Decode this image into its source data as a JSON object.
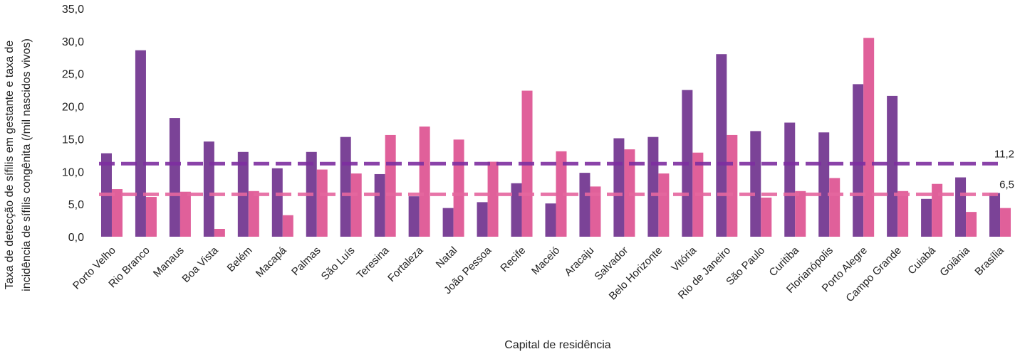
{
  "chart_data": {
    "type": "bar",
    "xlabel": "Capital de residência",
    "ylabel_lines": [
      "Taxa de detecção de sífilis em gestante e taxa de",
      "incidência de sífilis congênita (/mil nascidos vivos)"
    ],
    "ylim": [
      0,
      35
    ],
    "yticks": [
      "0,0",
      "5,0",
      "10,0",
      "15,0",
      "20,0",
      "25,0",
      "30,0",
      "35,0"
    ],
    "grid": false,
    "categories": [
      "Porto Velho",
      "Rio Branco",
      "Manaus",
      "Boa Vista",
      "Belém",
      "Macapá",
      "Palmas",
      "São Luís",
      "Teresina",
      "Fortaleza",
      "Natal",
      "João Pessoa",
      "Recife",
      "Maceió",
      "Aracaju",
      "Salvador",
      "Belo Horizonte",
      "Vitória",
      "Rio de Janeiro",
      "São Paulo",
      "Curitiba",
      "Florianópolis",
      "Porto Alegre",
      "Campo Grande",
      "Cuiabá",
      "Goiânia",
      "Brasília"
    ],
    "series": [
      {
        "values": [
          12.8,
          28.6,
          18.2,
          14.6,
          13.0,
          10.5,
          13.0,
          15.3,
          9.6,
          6.2,
          4.4,
          5.3,
          8.2,
          5.1,
          9.8,
          15.1,
          15.3,
          22.5,
          28.0,
          16.2,
          17.5,
          16.0,
          23.4,
          21.6,
          5.8,
          9.1,
          6.7
        ],
        "color": "#7B4397"
      },
      {
        "values": [
          7.3,
          6.1,
          6.9,
          1.2,
          7.0,
          3.3,
          10.3,
          9.7,
          15.6,
          16.9,
          14.9,
          11.5,
          22.4,
          13.1,
          7.7,
          13.4,
          9.7,
          12.9,
          15.6,
          6.0,
          7.0,
          9.0,
          30.5,
          7.0,
          8.1,
          3.8,
          4.4
        ],
        "color": "#E0609A"
      }
    ],
    "reference_lines": [
      {
        "value": 11.2,
        "label": "11,2",
        "color": "#7E2FA0"
      },
      {
        "value": 6.5,
        "label": "6,5",
        "color": "#E5679F"
      }
    ]
  }
}
